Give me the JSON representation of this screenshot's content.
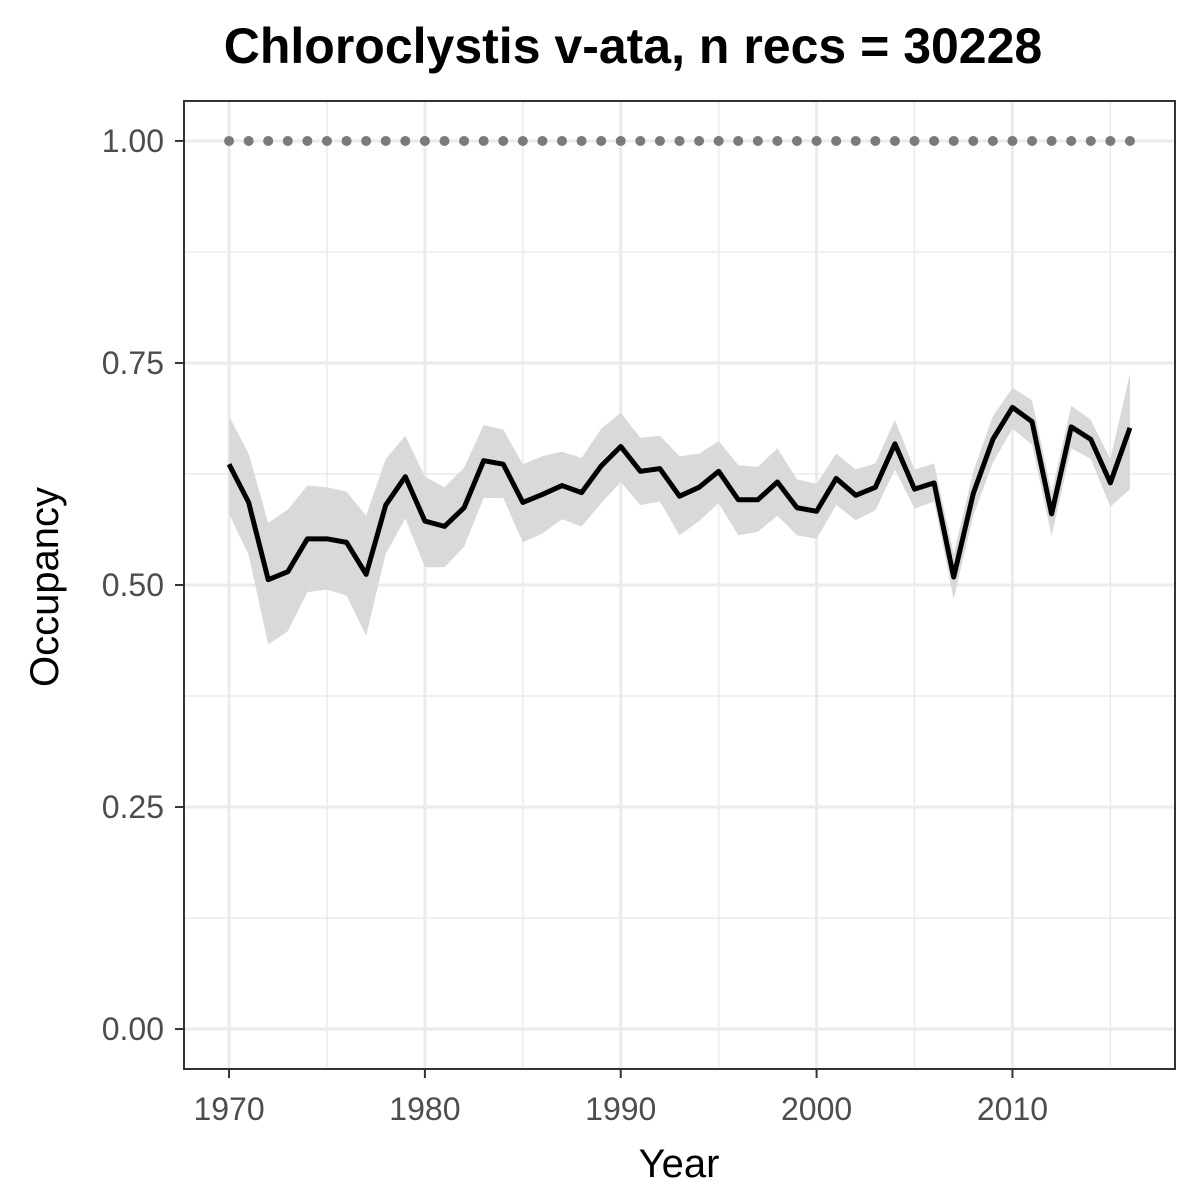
{
  "chart_data": {
    "type": "line",
    "title": "Chloroclystis v-ata, n recs = 30228",
    "xlabel": "Year",
    "ylabel": "Occupancy",
    "xlim": [
      1967.7,
      2018.3
    ],
    "ylim": [
      -0.045,
      1.045
    ],
    "x_ticks": [
      1970,
      1980,
      1990,
      2000,
      2010
    ],
    "y_ticks": [
      0,
      0.25,
      0.5,
      0.75,
      1
    ],
    "y_tick_labels": [
      "0.00",
      "0.25",
      "0.50",
      "0.75",
      "1.00"
    ],
    "grid": true,
    "legend": "none",
    "colors": {
      "line": "#000000",
      "ribbon": "#d9d9d9",
      "reference_points": "#7a7a7a",
      "grid": "#ebebeb",
      "panel_border": "#333333",
      "tick_label": "#4d4d4d"
    },
    "series": [
      {
        "x": [
          1970,
          1971,
          1972,
          1973,
          1974,
          1975,
          1976,
          1977,
          1978,
          1979,
          1980,
          1981,
          1982,
          1983,
          1984,
          1985,
          1986,
          1987,
          1988,
          1989,
          1990,
          1991,
          1992,
          1993,
          1994,
          1995,
          1996,
          1997,
          1998,
          1999,
          2000,
          2001,
          2002,
          2003,
          2004,
          2005,
          2006,
          2007,
          2008,
          2009,
          2010,
          2011,
          2012,
          2013,
          2014,
          2015,
          2016
        ],
        "values": [
          0.636,
          0.593,
          0.506,
          0.515,
          0.552,
          0.552,
          0.548,
          0.512,
          0.59,
          0.622,
          0.572,
          0.566,
          0.587,
          0.64,
          0.636,
          0.593,
          0.602,
          0.612,
          0.604,
          0.634,
          0.656,
          0.628,
          0.631,
          0.6,
          0.61,
          0.628,
          0.596,
          0.596,
          0.616,
          0.587,
          0.583,
          0.62,
          0.601,
          0.61,
          0.659,
          0.608,
          0.615,
          0.509,
          0.603,
          0.664,
          0.7,
          0.684,
          0.58,
          0.678,
          0.664,
          0.615,
          0.677
        ],
        "lower": [
          0.58,
          0.534,
          0.433,
          0.448,
          0.492,
          0.495,
          0.488,
          0.443,
          0.535,
          0.575,
          0.52,
          0.52,
          0.543,
          0.598,
          0.598,
          0.548,
          0.558,
          0.574,
          0.566,
          0.592,
          0.616,
          0.59,
          0.594,
          0.556,
          0.572,
          0.592,
          0.556,
          0.56,
          0.578,
          0.556,
          0.552,
          0.59,
          0.573,
          0.584,
          0.63,
          0.586,
          0.594,
          0.484,
          0.578,
          0.638,
          0.676,
          0.658,
          0.555,
          0.654,
          0.642,
          0.588,
          0.608
        ],
        "upper": [
          0.69,
          0.648,
          0.57,
          0.585,
          0.612,
          0.61,
          0.605,
          0.578,
          0.642,
          0.668,
          0.622,
          0.61,
          0.632,
          0.68,
          0.675,
          0.636,
          0.645,
          0.65,
          0.643,
          0.676,
          0.694,
          0.666,
          0.668,
          0.645,
          0.648,
          0.662,
          0.635,
          0.633,
          0.654,
          0.619,
          0.614,
          0.648,
          0.63,
          0.637,
          0.686,
          0.63,
          0.637,
          0.535,
          0.628,
          0.69,
          0.722,
          0.708,
          0.604,
          0.702,
          0.686,
          0.642,
          0.738
        ]
      },
      {
        "x": [
          1970,
          1971,
          1972,
          1973,
          1974,
          1975,
          1976,
          1977,
          1978,
          1979,
          1980,
          1981,
          1982,
          1983,
          1984,
          1985,
          1986,
          1987,
          1988,
          1989,
          1990,
          1991,
          1992,
          1993,
          1994,
          1995,
          1996,
          1997,
          1998,
          1999,
          2000,
          2001,
          2002,
          2003,
          2004,
          2005,
          2006,
          2007,
          2008,
          2009,
          2010,
          2011,
          2012,
          2013,
          2014,
          2015,
          2016
        ],
        "values": [
          1,
          1,
          1,
          1,
          1,
          1,
          1,
          1,
          1,
          1,
          1,
          1,
          1,
          1,
          1,
          1,
          1,
          1,
          1,
          1,
          1,
          1,
          1,
          1,
          1,
          1,
          1,
          1,
          1,
          1,
          1,
          1,
          1,
          1,
          1,
          1,
          1,
          1,
          1,
          1,
          1,
          1,
          1,
          1,
          1,
          1,
          1
        ]
      }
    ]
  }
}
